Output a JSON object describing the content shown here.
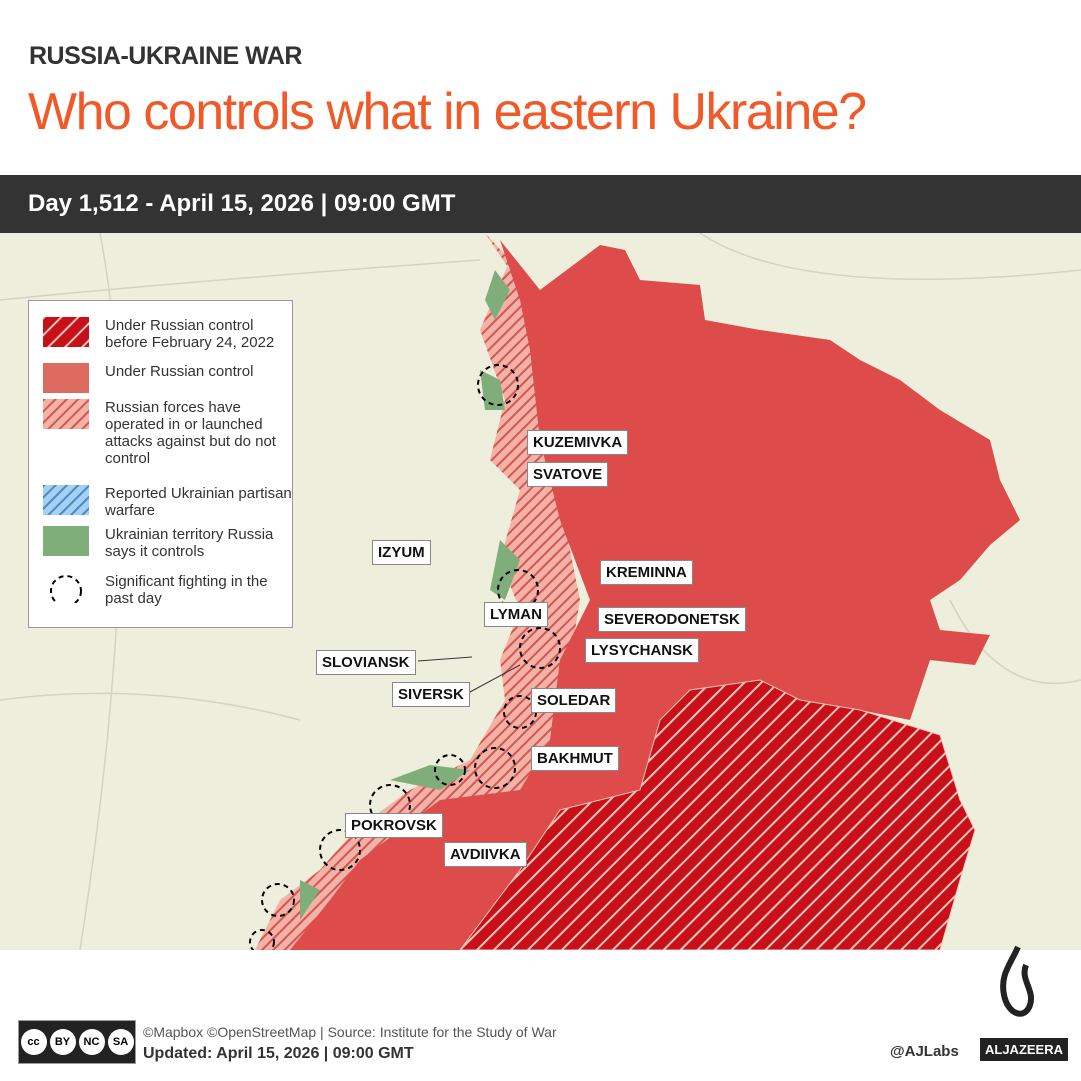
{
  "header": {
    "kicker": "RUSSIA-UKRAINE WAR",
    "title": "Who controls what in eastern Ukraine?",
    "date_bar": "Day 1,512 - April 15, 2026  |  09:00 GMT"
  },
  "legend": [
    {
      "label": "Under Russian control before February 24, 2022",
      "icon": "red-hatch"
    },
    {
      "label": "Under Russian control",
      "icon": "red-solid"
    },
    {
      "label": "Russian forces have operated in or launched attacks against but do not control",
      "icon": "light-red-hatch"
    },
    {
      "label": "Reported Ukrainian partisan warfare",
      "icon": "blue-hatch"
    },
    {
      "label": "Ukrainian territory Russia says it controls",
      "icon": "green-solid"
    },
    {
      "label": "Significant fighting in the past day",
      "icon": "dashed-circle"
    }
  ],
  "places": [
    "KUZEMIVKA",
    "SVATOVE",
    "IZYUM",
    "KREMINNA",
    "LYMAN",
    "SEVERODONETSK",
    "SLOVIANSK",
    "LYSYCHANSK",
    "SIVERSK",
    "SOLEDAR",
    "BAKHMUT",
    "POKROVSK",
    "AVDIIVKA"
  ],
  "footer": {
    "credits": "©Mapbox ©OpenStreetMap | Source: Institute for the Study of War",
    "updated": "Updated: April 15, 2026  |  09:00 GMT",
    "handle": "@AJLabs",
    "brand": "ALJAZEERA",
    "license": [
      "BY",
      "NC",
      "SA"
    ]
  },
  "colors": {
    "title": "#f05a28",
    "russian_control": "#dd4b4b",
    "pre2022": "#c8101a",
    "ukraine_claimed": "#7fae7a",
    "map_bg": "#eeeedd"
  }
}
